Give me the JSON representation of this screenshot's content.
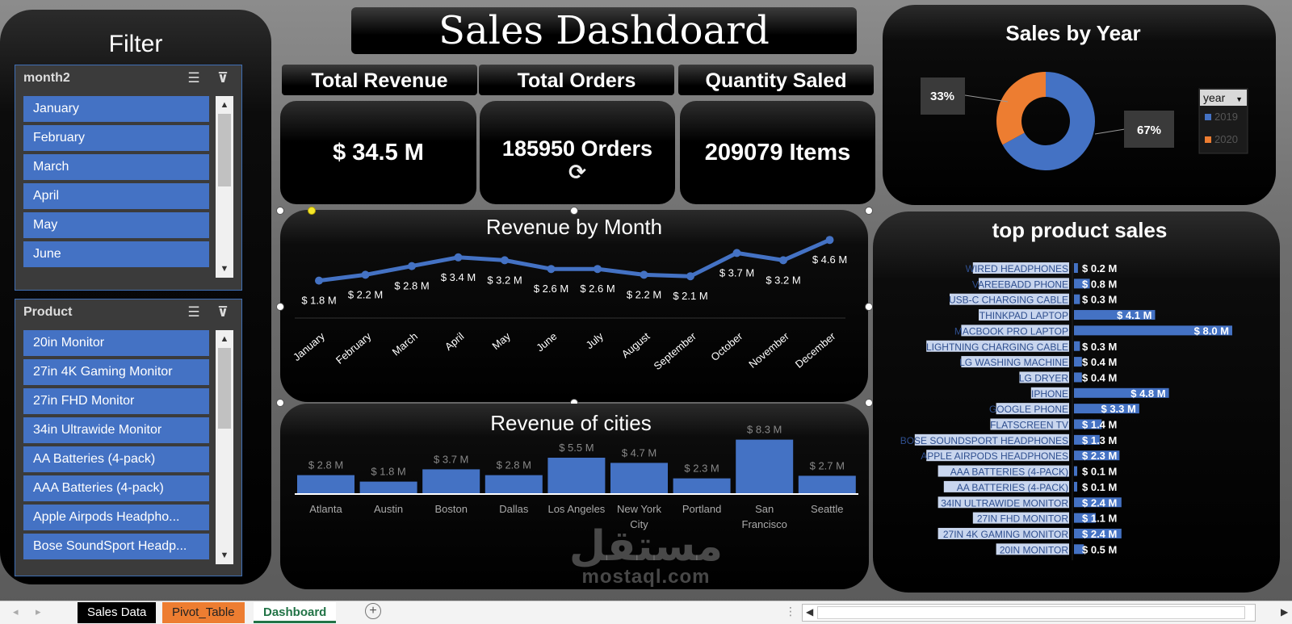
{
  "colors": {
    "accent": "#4472c4",
    "orange": "#ed7d31",
    "panel": "#000000"
  },
  "filter": {
    "title": "Filter",
    "month_slicer": {
      "header": "month2",
      "items": [
        "January",
        "February",
        "March",
        "April",
        "May",
        "June"
      ]
    },
    "product_slicer": {
      "header": "Product",
      "items": [
        "20in Monitor",
        "27in 4K Gaming Monitor",
        "27in FHD Monitor",
        "34in Ultrawide Monitor",
        "AA Batteries (4-pack)",
        "AAA Batteries (4-pack)",
        "Apple Airpods Headpho...",
        "Bose SoundSport Headp..."
      ]
    },
    "icons": {
      "multi_select": "multi-select-icon",
      "clear_filter": "clear-filter-icon"
    }
  },
  "dashboard_title": "Sales Dashdoard",
  "kpis": {
    "labels": [
      "Total Revenue",
      "Total Orders",
      "Quantity Saled"
    ],
    "values": [
      "$ 34.5 M",
      "185950 Orders",
      "209079 Items"
    ]
  },
  "chart_data": [
    {
      "type": "line",
      "title": "Revenue by Month",
      "categories": [
        "January",
        "February",
        "March",
        "April",
        "May",
        "June",
        "July",
        "August",
        "September",
        "October",
        "November",
        "December"
      ],
      "values": [
        1.8,
        2.2,
        2.8,
        3.4,
        3.2,
        2.6,
        2.6,
        2.2,
        2.1,
        3.7,
        3.2,
        4.6
      ],
      "data_labels": [
        "$ 1.8 M",
        "$ 2.2 M",
        "$ 2.8 M",
        "$ 3.4 M",
        "$ 3.2 M",
        "$ 2.6 M",
        "$ 2.6 M",
        "$ 2.2 M",
        "$ 2.1 M",
        "$ 3.7 M",
        "$ 3.2 M",
        "$ 4.6 M"
      ],
      "color": "#4472c4"
    },
    {
      "type": "bar",
      "title": "Revenue of cities",
      "categories": [
        "Atlanta",
        "Austin",
        "Boston",
        "Dallas",
        "Los Angeles",
        "New York City",
        "Portland",
        "San Francisco",
        "Seattle"
      ],
      "values": [
        2.8,
        1.8,
        3.7,
        2.8,
        5.5,
        4.7,
        2.3,
        8.3,
        2.7
      ],
      "data_labels": [
        "$ 2.8 M",
        "$ 1.8 M",
        "$ 3.7 M",
        "$ 2.8 M",
        "$ 5.5 M",
        "$ 4.7 M",
        "$ 2.3 M",
        "$ 8.3 M",
        "$ 2.7 M"
      ],
      "color": "#4472c4"
    },
    {
      "type": "pie",
      "title": "Sales by Year",
      "categories": [
        "2019",
        "2020"
      ],
      "values": [
        67,
        33
      ],
      "data_labels": [
        "67%",
        "33%"
      ],
      "legend_title": "year",
      "legend_position": "right",
      "colors": [
        "#4472c4",
        "#ed7d31"
      ]
    },
    {
      "type": "bar",
      "orientation": "horizontal",
      "title": "top product sales",
      "categories": [
        "WIRED HEADPHONES",
        "VAREEBADD PHONE",
        "USB-C CHARGING CABLE",
        "THINKPAD LAPTOP",
        "MACBOOK PRO LAPTOP",
        "LIGHTNING CHARGING CABLE",
        "LG WASHING MACHINE",
        "LG DRYER",
        "IPHONE",
        "GOOGLE PHONE",
        "FLATSCREEN TV",
        "BOSE SOUNDSPORT HEADPHONES",
        "APPLE AIRPODS HEADPHONES",
        "AAA BATTERIES (4-PACK)",
        "AA BATTERIES (4-PACK)",
        "34IN ULTRAWIDE MONITOR",
        "27IN FHD MONITOR",
        "27IN 4K GAMING MONITOR",
        "20IN MONITOR"
      ],
      "values": [
        0.2,
        0.8,
        0.3,
        4.1,
        8.0,
        0.3,
        0.4,
        0.4,
        4.8,
        3.3,
        1.4,
        1.3,
        2.3,
        0.1,
        0.1,
        2.4,
        1.1,
        2.4,
        0.5
      ],
      "data_labels": [
        "$ 0.2 M",
        "$ 0.8 M",
        "$ 0.3 M",
        "$ 4.1 M",
        "$ 8.0 M",
        "$ 0.3 M",
        "$ 0.4 M",
        "$ 0.4 M",
        "$ 4.8 M",
        "$ 3.3 M",
        "$ 1.4 M",
        "$ 1.3 M",
        "$ 2.3 M",
        "$ 0.1 M",
        "$ 0.1 M",
        "$ 2.4 M",
        "$ 1.1 M",
        "$ 2.4 M",
        "$ 0.5 M"
      ],
      "color": "#4472c4"
    }
  ],
  "sheet_tabs": [
    "Sales Data",
    "Pivot_Table",
    "Dashboard"
  ],
  "watermark": {
    "arabic": "مستقل",
    "latin": "mostaql.com"
  }
}
